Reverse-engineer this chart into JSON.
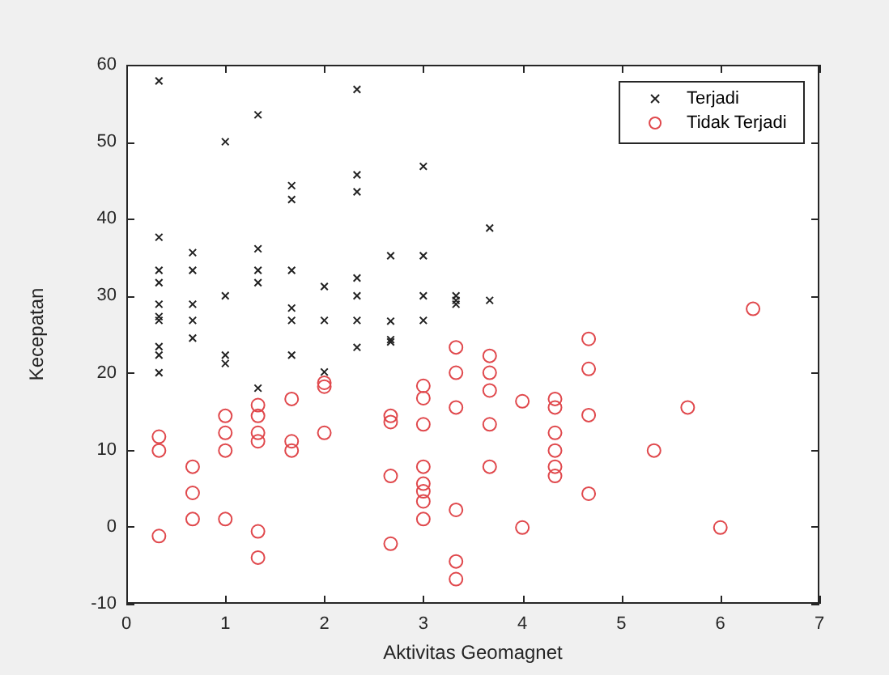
{
  "chart_data": {
    "type": "scatter",
    "xlabel": "Aktivitas Geomagnet",
    "ylabel": "Kecepatan",
    "xlim": [
      0,
      7
    ],
    "xticks": [
      0,
      1,
      2,
      3,
      4,
      5,
      6,
      7
    ],
    "ylim": [
      -10,
      60
    ],
    "yticks": [
      -10,
      0,
      10,
      20,
      30,
      40,
      50,
      60
    ],
    "grid": false,
    "legend": "top right",
    "series": [
      {
        "name": "Terjadi",
        "color": "#222222",
        "marker": "cross",
        "x": [
          0.33,
          0.33,
          0.33,
          0.33,
          0.33,
          0.33,
          0.33,
          0.33,
          0.33,
          0.33,
          0.67,
          0.67,
          0.67,
          0.67,
          0.67,
          1,
          1,
          1,
          1,
          1.33,
          1.33,
          1.33,
          1.33,
          1.33,
          1.67,
          1.67,
          1.67,
          1.67,
          1.67,
          1.67,
          2,
          2,
          2,
          2.33,
          2.33,
          2.33,
          2.33,
          2.33,
          2.33,
          2.33,
          2.67,
          2.67,
          2.67,
          2.67,
          3,
          3,
          3,
          3,
          3.33,
          3.33,
          3.33,
          3.67,
          3.67
        ],
        "values": [
          57.9,
          37.6,
          33.3,
          31.7,
          28.9,
          27.3,
          26.8,
          23.4,
          22.3,
          20.0,
          35.6,
          33.3,
          28.9,
          26.8,
          24.5,
          50.0,
          30.0,
          22.3,
          21.2,
          53.5,
          36.1,
          33.3,
          31.7,
          18.0,
          44.3,
          42.5,
          33.3,
          28.4,
          26.8,
          22.3,
          31.2,
          26.8,
          20.1,
          56.8,
          45.7,
          43.5,
          32.3,
          30.0,
          26.8,
          23.3,
          35.2,
          26.7,
          24.3,
          24.0,
          46.8,
          35.2,
          30.0,
          26.8,
          30.0,
          29.4,
          28.9,
          38.8,
          29.4
        ]
      },
      {
        "name": "Tidak Terjadi",
        "color": "#e0484c",
        "marker": "circle",
        "x": [
          0.33,
          0.33,
          0.33,
          0.67,
          0.67,
          0.67,
          1,
          1,
          1,
          1,
          1.33,
          1.33,
          1.33,
          1.33,
          1.33,
          1.33,
          1.67,
          1.67,
          1.67,
          2,
          2,
          2,
          2.67,
          2.67,
          2.67,
          2.67,
          3,
          3,
          3,
          3,
          3,
          3,
          3,
          3,
          3.33,
          3.33,
          3.33,
          3.33,
          3.33,
          3.33,
          3.67,
          3.67,
          3.67,
          3.67,
          3.67,
          4,
          4,
          4.33,
          4.33,
          4.33,
          4.33,
          4.33,
          4.33,
          4.67,
          4.67,
          4.67,
          4.67,
          5.33,
          5.67,
          6,
          6.33
        ],
        "values": [
          11.7,
          9.9,
          -1.2,
          7.8,
          4.4,
          1.0,
          14.4,
          12.2,
          9.9,
          1.0,
          15.8,
          14.4,
          12.2,
          11.1,
          -0.6,
          -4.0,
          16.6,
          11.1,
          9.9,
          18.7,
          18.2,
          12.2,
          14.4,
          13.6,
          6.6,
          -2.2,
          18.3,
          16.7,
          13.3,
          7.8,
          5.6,
          4.6,
          3.3,
          1.0,
          23.3,
          20.0,
          15.5,
          2.2,
          -4.5,
          -6.8,
          22.2,
          20.0,
          17.7,
          13.3,
          7.8,
          16.3,
          -0.1,
          16.6,
          15.5,
          12.2,
          9.9,
          7.8,
          6.6,
          24.4,
          20.5,
          14.5,
          4.3,
          9.9,
          15.5,
          -0.1,
          28.3
        ]
      }
    ]
  }
}
